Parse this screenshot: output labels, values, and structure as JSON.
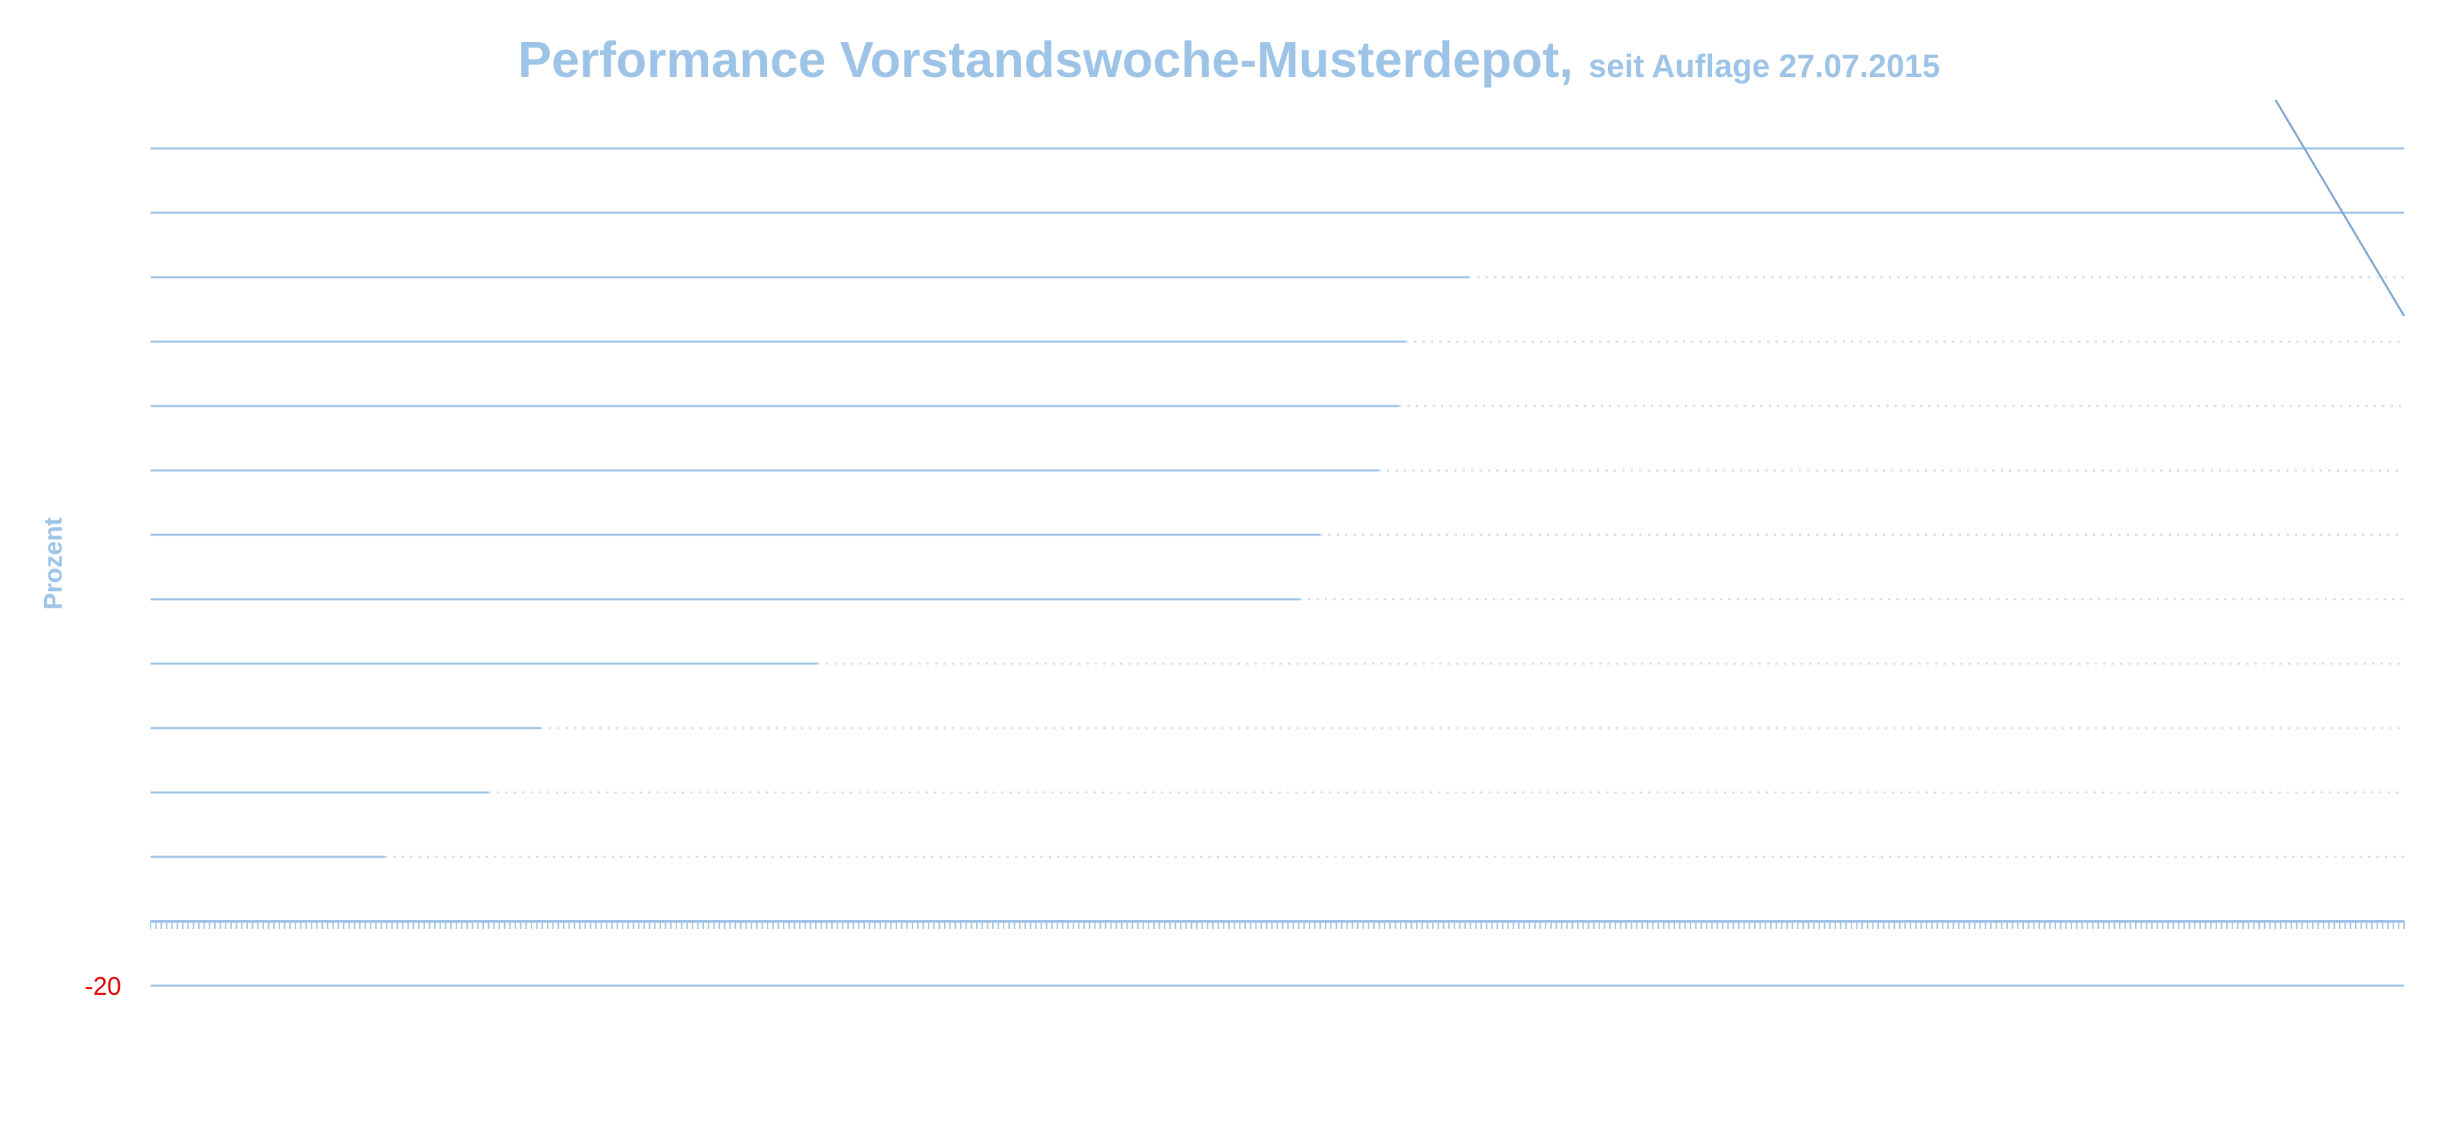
{
  "chart_data": {
    "type": "line",
    "title": "Performance Vorstandswoche-Musterdepot,",
    "subtitle": "seit Auflage 27.07.2015",
    "ylabel": "Prozent",
    "xlabel": "",
    "ylim": [
      -20,
      260
    ],
    "grid": true,
    "tick_labels_y": [
      {
        "value": -20,
        "label": "-20"
      }
    ],
    "series": [
      {
        "color": "#7fa8d0",
        "x": [
          0.943,
          1.0
        ],
        "values": [
          255,
          188
        ]
      }
    ],
    "bands": [
      {
        "y": 240,
        "to": 1.0
      },
      {
        "y": 220,
        "to": 1.0
      },
      {
        "y": 200,
        "to": 0.585
      },
      {
        "y": 180,
        "to": 0.557
      },
      {
        "y": 160,
        "to": 0.554
      },
      {
        "y": 140,
        "to": 0.545
      },
      {
        "y": 120,
        "to": 0.519
      },
      {
        "y": 100,
        "to": 0.51
      },
      {
        "y": 80,
        "to": 0.296
      },
      {
        "y": 60,
        "to": 0.173
      },
      {
        "y": 40,
        "to": 0.15
      },
      {
        "y": 20,
        "to": 0.104
      }
    ],
    "baseline_y": 0,
    "bottom_line_y": -20
  },
  "colors": {
    "grid": "#9dc3e6",
    "grid_dotted": "#c9dcef",
    "tick_negative": "#e00000",
    "series": "#7fa8d0"
  }
}
